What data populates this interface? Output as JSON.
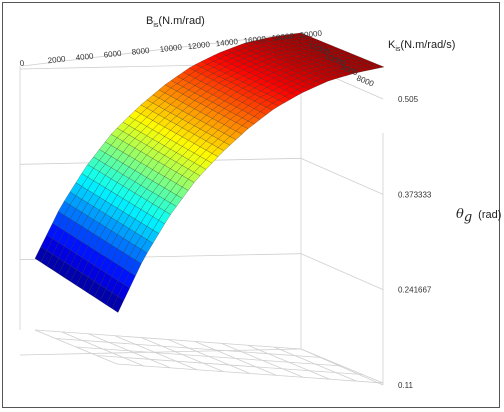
{
  "chart_data": {
    "type": "surface",
    "title": "",
    "x_axis": {
      "label": "B",
      "label_sub": "is",
      "label_unit": "(N.m/rad)",
      "ticks": [
        "0",
        "2000",
        "4000",
        "6000",
        "8000",
        "10000",
        "12000",
        "14000",
        "16000",
        "18000",
        "20000"
      ],
      "range": [
        0,
        20000
      ]
    },
    "y_axis": {
      "label": "K",
      "label_sub": "is",
      "label_unit": "(N.m/rad/s)",
      "ticks": [
        "11000",
        "10000",
        "9000",
        "8000"
      ],
      "range": [
        8000,
        11000
      ]
    },
    "z_axis": {
      "label_symbol": "θ",
      "label_sub": "g",
      "label_unit": "(rad)",
      "ticks": [
        "0.11",
        "0.241667",
        "0.373333",
        "0.505"
      ],
      "range": [
        0.11,
        0.505
      ]
    },
    "surface": {
      "description_x": [
        0,
        2000,
        4000,
        6000,
        8000,
        10000,
        12000,
        14000,
        16000,
        18000,
        20000
      ],
      "theta_at_x": [
        0.2,
        0.27,
        0.325,
        0.37,
        0.405,
        0.435,
        0.46,
        0.478,
        0.492,
        0.5,
        0.505
      ]
    },
    "colormap": "jet",
    "grid": true
  }
}
